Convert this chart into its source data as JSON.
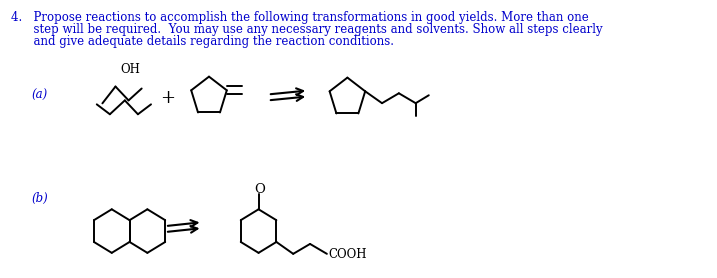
{
  "bg_color": "#ffffff",
  "text_color": "#000000",
  "blue_color": "#0000cc",
  "title_line1": "4.   Propose reactions to accomplish the following transformations in good yields. More than one",
  "title_line2": "      step will be required.  You may use any necessary reagents and solvents. Show all steps clearly",
  "title_line3": "      and give adequate details regarding the reaction conditions.",
  "label_a": "(a)",
  "label_b": "(b)",
  "font_size_text": 8.5,
  "font_family": "DejaVu Serif"
}
